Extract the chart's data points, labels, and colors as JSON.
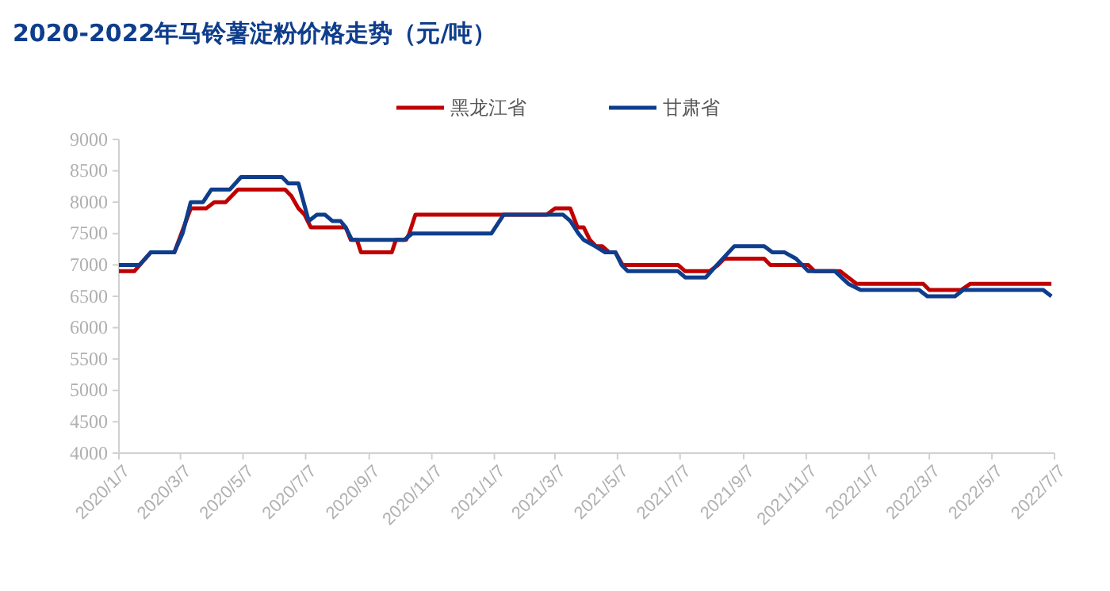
{
  "chart_data": {
    "type": "line",
    "title": "2020-2022年马铃薯淀粉价格走势（元/吨）",
    "xlim": [
      "2020-01-07",
      "2022-07-07"
    ],
    "xticks": [
      {
        "value": "2020-01-07",
        "label": "2020/1/7"
      },
      {
        "value": "2020-03-07",
        "label": "2020/3/7"
      },
      {
        "value": "2020-05-07",
        "label": "2020/5/7"
      },
      {
        "value": "2020-07-07",
        "label": "2020/7/7"
      },
      {
        "value": "2020-09-07",
        "label": "2020/9/7"
      },
      {
        "value": "2020-11-07",
        "label": "2020/11/7"
      },
      {
        "value": "2021-01-07",
        "label": "2021/1/7"
      },
      {
        "value": "2021-03-07",
        "label": "2021/3/7"
      },
      {
        "value": "2021-05-07",
        "label": "2021/5/7"
      },
      {
        "value": "2021-07-07",
        "label": "2021/7/7"
      },
      {
        "value": "2021-09-07",
        "label": "2021/9/7"
      },
      {
        "value": "2021-11-07",
        "label": "2021/11/7"
      },
      {
        "value": "2022-01-07",
        "label": "2022/1/7"
      },
      {
        "value": "2022-03-07",
        "label": "2022/3/7"
      },
      {
        "value": "2022-05-07",
        "label": "2022/5/7"
      },
      {
        "value": "2022-07-07",
        "label": "2022/7/7"
      }
    ],
    "ylim": [
      4000,
      9000
    ],
    "yticks": [
      4000,
      4500,
      5000,
      5500,
      6000,
      6500,
      7000,
      7500,
      8000,
      8500,
      9000
    ],
    "grid": false,
    "legend": "top",
    "marker": "none",
    "line_style": "solid",
    "series": [
      {
        "name": "黑龙江省",
        "color": "#c00000",
        "x": [
          "2020-01-07",
          "2020-01-22",
          "2020-02-07",
          "2020-03-01",
          "2020-03-17",
          "2020-04-01",
          "2020-04-09",
          "2020-04-20",
          "2020-04-26",
          "2020-05-02",
          "2020-06-17",
          "2020-06-23",
          "2020-06-30",
          "2020-07-06",
          "2020-07-12",
          "2020-08-15",
          "2020-08-20",
          "2020-08-26",
          "2020-08-30",
          "2020-09-29",
          "2020-10-03",
          "2020-10-13",
          "2020-10-16",
          "2020-10-22",
          "2021-02-27",
          "2021-03-07",
          "2021-03-22",
          "2021-03-29",
          "2021-04-04",
          "2021-04-10",
          "2021-04-16",
          "2021-04-22",
          "2021-04-29",
          "2021-05-05",
          "2021-05-12",
          "2021-07-05",
          "2021-07-12",
          "2021-08-05",
          "2021-08-13",
          "2021-08-19",
          "2021-09-27",
          "2021-10-03",
          "2021-11-09",
          "2021-11-15",
          "2021-12-10",
          "2021-12-18",
          "2021-12-26",
          "2022-03-01",
          "2022-03-07",
          "2022-04-07",
          "2022-04-16",
          "2022-07-04"
        ],
        "values": [
          6900,
          6900,
          7200,
          7200,
          7900,
          7900,
          8000,
          8000,
          8100,
          8200,
          8200,
          8100,
          7900,
          7800,
          7600,
          7600,
          7400,
          7400,
          7200,
          7200,
          7400,
          7400,
          7500,
          7800,
          7800,
          7900,
          7900,
          7600,
          7600,
          7400,
          7300,
          7300,
          7200,
          7200,
          7000,
          7000,
          6900,
          6900,
          7000,
          7100,
          7100,
          7000,
          7000,
          6900,
          6900,
          6800,
          6700,
          6700,
          6600,
          6600,
          6700,
          6700
        ]
      },
      {
        "name": "甘肃省",
        "color": "#0e3d8c",
        "x": [
          "2020-01-07",
          "2020-01-27",
          "2020-02-07",
          "2020-03-01",
          "2020-03-09",
          "2020-03-17",
          "2020-03-29",
          "2020-04-06",
          "2020-04-24",
          "2020-05-05",
          "2020-06-14",
          "2020-06-20",
          "2020-06-30",
          "2020-07-10",
          "2020-07-18",
          "2020-07-26",
          "2020-08-02",
          "2020-08-10",
          "2020-08-15",
          "2020-08-21",
          "2020-10-11",
          "2020-10-19",
          "2021-01-04",
          "2021-01-16",
          "2021-03-15",
          "2021-03-22",
          "2021-03-30",
          "2021-04-04",
          "2021-04-15",
          "2021-04-25",
          "2021-05-05",
          "2021-05-11",
          "2021-05-17",
          "2021-07-05",
          "2021-07-12",
          "2021-08-01",
          "2021-08-12",
          "2021-08-29",
          "2021-09-27",
          "2021-10-05",
          "2021-10-17",
          "2021-10-28",
          "2021-11-09",
          "2021-12-05",
          "2021-12-18",
          "2021-12-30",
          "2022-02-25",
          "2022-03-05",
          "2022-04-01",
          "2022-04-09",
          "2022-06-26",
          "2022-07-04"
        ],
        "values": [
          7000,
          7000,
          7200,
          7200,
          7500,
          8000,
          8000,
          8200,
          8200,
          8400,
          8400,
          8300,
          8300,
          7700,
          7800,
          7800,
          7700,
          7700,
          7600,
          7400,
          7400,
          7500,
          7500,
          7800,
          7800,
          7700,
          7500,
          7400,
          7300,
          7200,
          7200,
          7000,
          6900,
          6900,
          6800,
          6800,
          7000,
          7300,
          7300,
          7200,
          7200,
          7100,
          6900,
          6900,
          6700,
          6600,
          6600,
          6500,
          6500,
          6600,
          6600,
          6500
        ]
      }
    ]
  }
}
